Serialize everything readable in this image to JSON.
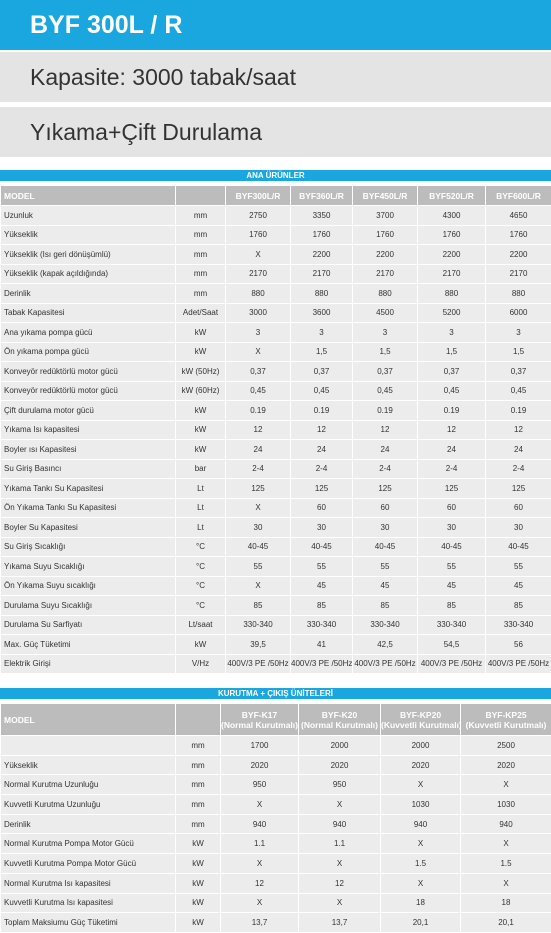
{
  "header": {
    "title": "BYF 300L / R",
    "capacity": "Kapasite: 3000 tabak/saat",
    "subtitle": "Yıkama+Çift Durulama"
  },
  "tables": [
    {
      "title": "ANA ÜRÜNLER",
      "columns": [
        "MODEL",
        null,
        "BYF300L/R",
        "BYF360L/R",
        "BYF450L/R",
        "BYF520L/R",
        "BYF600L/R"
      ],
      "rows": [
        [
          "Uzunluk",
          "mm",
          "2750",
          "3350",
          "3700",
          "4300",
          "4650"
        ],
        [
          "Yükseklik",
          "mm",
          "1760",
          "1760",
          "1760",
          "1760",
          "1760"
        ],
        [
          "Yükseklik (Isı geri dönüşümlü)",
          "mm",
          "X",
          "2200",
          "2200",
          "2200",
          "2200"
        ],
        [
          "Yükseklik (kapak açıldığında)",
          "mm",
          "2170",
          "2170",
          "2170",
          "2170",
          "2170"
        ],
        [
          "Derinlik",
          "mm",
          "880",
          "880",
          "880",
          "880",
          "880"
        ],
        [
          "Tabak Kapasitesi",
          "Adet/Saat",
          "3000",
          "3600",
          "4500",
          "5200",
          "6000"
        ],
        [
          "Ana yıkama pompa gücü",
          "kW",
          "3",
          "3",
          "3",
          "3",
          "3"
        ],
        [
          "Ön yıkama pompa gücü",
          "kW",
          "X",
          "1,5",
          "1,5",
          "1,5",
          "1,5"
        ],
        [
          "Konveyör redüktörlü motor gücü",
          "kW (50Hz)",
          "0,37",
          "0,37",
          "0,37",
          "0,37",
          "0,37"
        ],
        [
          "Konveyör redüktörlü motor gücü",
          "kW (60Hz)",
          "0,45",
          "0,45",
          "0,45",
          "0,45",
          "0,45"
        ],
        [
          "Çift durulama motor gücü",
          "kW",
          "0.19",
          "0.19",
          "0.19",
          "0.19",
          "0.19"
        ],
        [
          "Yıkama Isı kapasitesi",
          "kW",
          "12",
          "12",
          "12",
          "12",
          "12"
        ],
        [
          "Boyler ısı Kapasitesi",
          "kW",
          "24",
          "24",
          "24",
          "24",
          "24"
        ],
        [
          "Su Giriş Basıncı",
          "bar",
          "2-4",
          "2-4",
          "2-4",
          "2-4",
          "2-4"
        ],
        [
          "Yıkama Tankı Su Kapasitesi",
          "Lt",
          "125",
          "125",
          "125",
          "125",
          "125"
        ],
        [
          "Ön Yıkama Tankı Su Kapasitesi",
          "Lt",
          "X",
          "60",
          "60",
          "60",
          "60"
        ],
        [
          "Boyler Su Kapasitesi",
          "Lt",
          "30",
          "30",
          "30",
          "30",
          "30"
        ],
        [
          "Su Giriş Sıcaklığı",
          "°C",
          "40-45",
          "40-45",
          "40-45",
          "40-45",
          "40-45"
        ],
        [
          "Yıkama Suyu Sıcaklığı",
          "°C",
          "55",
          "55",
          "55",
          "55",
          "55"
        ],
        [
          "Ön Yıkama Suyu sıcaklığı",
          "°C",
          "X",
          "45",
          "45",
          "45",
          "45"
        ],
        [
          "Durulama Suyu Sıcaklığı",
          "°C",
          "85",
          "85",
          "85",
          "85",
          "85"
        ],
        [
          "Durulama Su Sarfiyatı",
          "Lt/saat",
          "330-340",
          "330-340",
          "330-340",
          "330-340",
          "330-340"
        ],
        [
          "Max. Güç Tüketimi",
          "kW",
          "39,5",
          "41",
          "42,5",
          "54,5",
          "56"
        ],
        [
          "Elektrik Girişi",
          "V/Hz",
          "400V/3 PE /50Hz",
          "400V/3 PE /50Hz",
          "400V/3 PE /50Hz",
          "400V/3 PE /50Hz",
          "400V/3 PE /50Hz"
        ]
      ]
    },
    {
      "title": "KURUTMA + ÇIKIŞ ÜNİTELERİ",
      "columns": [
        "MODEL",
        null,
        [
          "BYF-K17",
          "(Normal Kurutmalı)"
        ],
        [
          "BYF-K20",
          "(Normal Kurutmalı)"
        ],
        [
          "BYF-KP20",
          "(Kuvvetli Kurutmalı)"
        ],
        [
          "BYF-KP25",
          "(Kuvvetli Kurutmalı)"
        ]
      ],
      "rows": [
        [
          null,
          "mm",
          "1700",
          "2000",
          "2000",
          "2500"
        ],
        [
          "Yükseklik",
          "mm",
          "2020",
          "2020",
          "2020",
          "2020"
        ],
        [
          "Normal Kurutma Uzunluğu",
          "mm",
          "950",
          "950",
          "X",
          "X"
        ],
        [
          "Kuvvetli Kurutma Uzunluğu",
          "mm",
          "X",
          "X",
          "1030",
          "1030"
        ],
        [
          "Derinlik",
          "mm",
          "940",
          "940",
          "940",
          "940"
        ],
        [
          "Normal Kurutma Pompa Motor Gücü",
          "kW",
          "1.1",
          "1.1",
          "X",
          "X"
        ],
        [
          "Kuvvetli Kurutma Pompa Motor Gücü",
          "kW",
          "X",
          "X",
          "1.5",
          "1.5"
        ],
        [
          "Normal Kurutma Isı kapasitesi",
          "kW",
          "12",
          "12",
          "X",
          "X"
        ],
        [
          "Kuvvetli Kurutma Isı kapasitesi",
          "kW",
          "X",
          "X",
          "18",
          "18"
        ],
        [
          "Toplam Maksiumu Güç Tüketimi",
          "kW",
          "13,7",
          "13,7",
          "20,1",
          "20,1"
        ]
      ]
    }
  ]
}
